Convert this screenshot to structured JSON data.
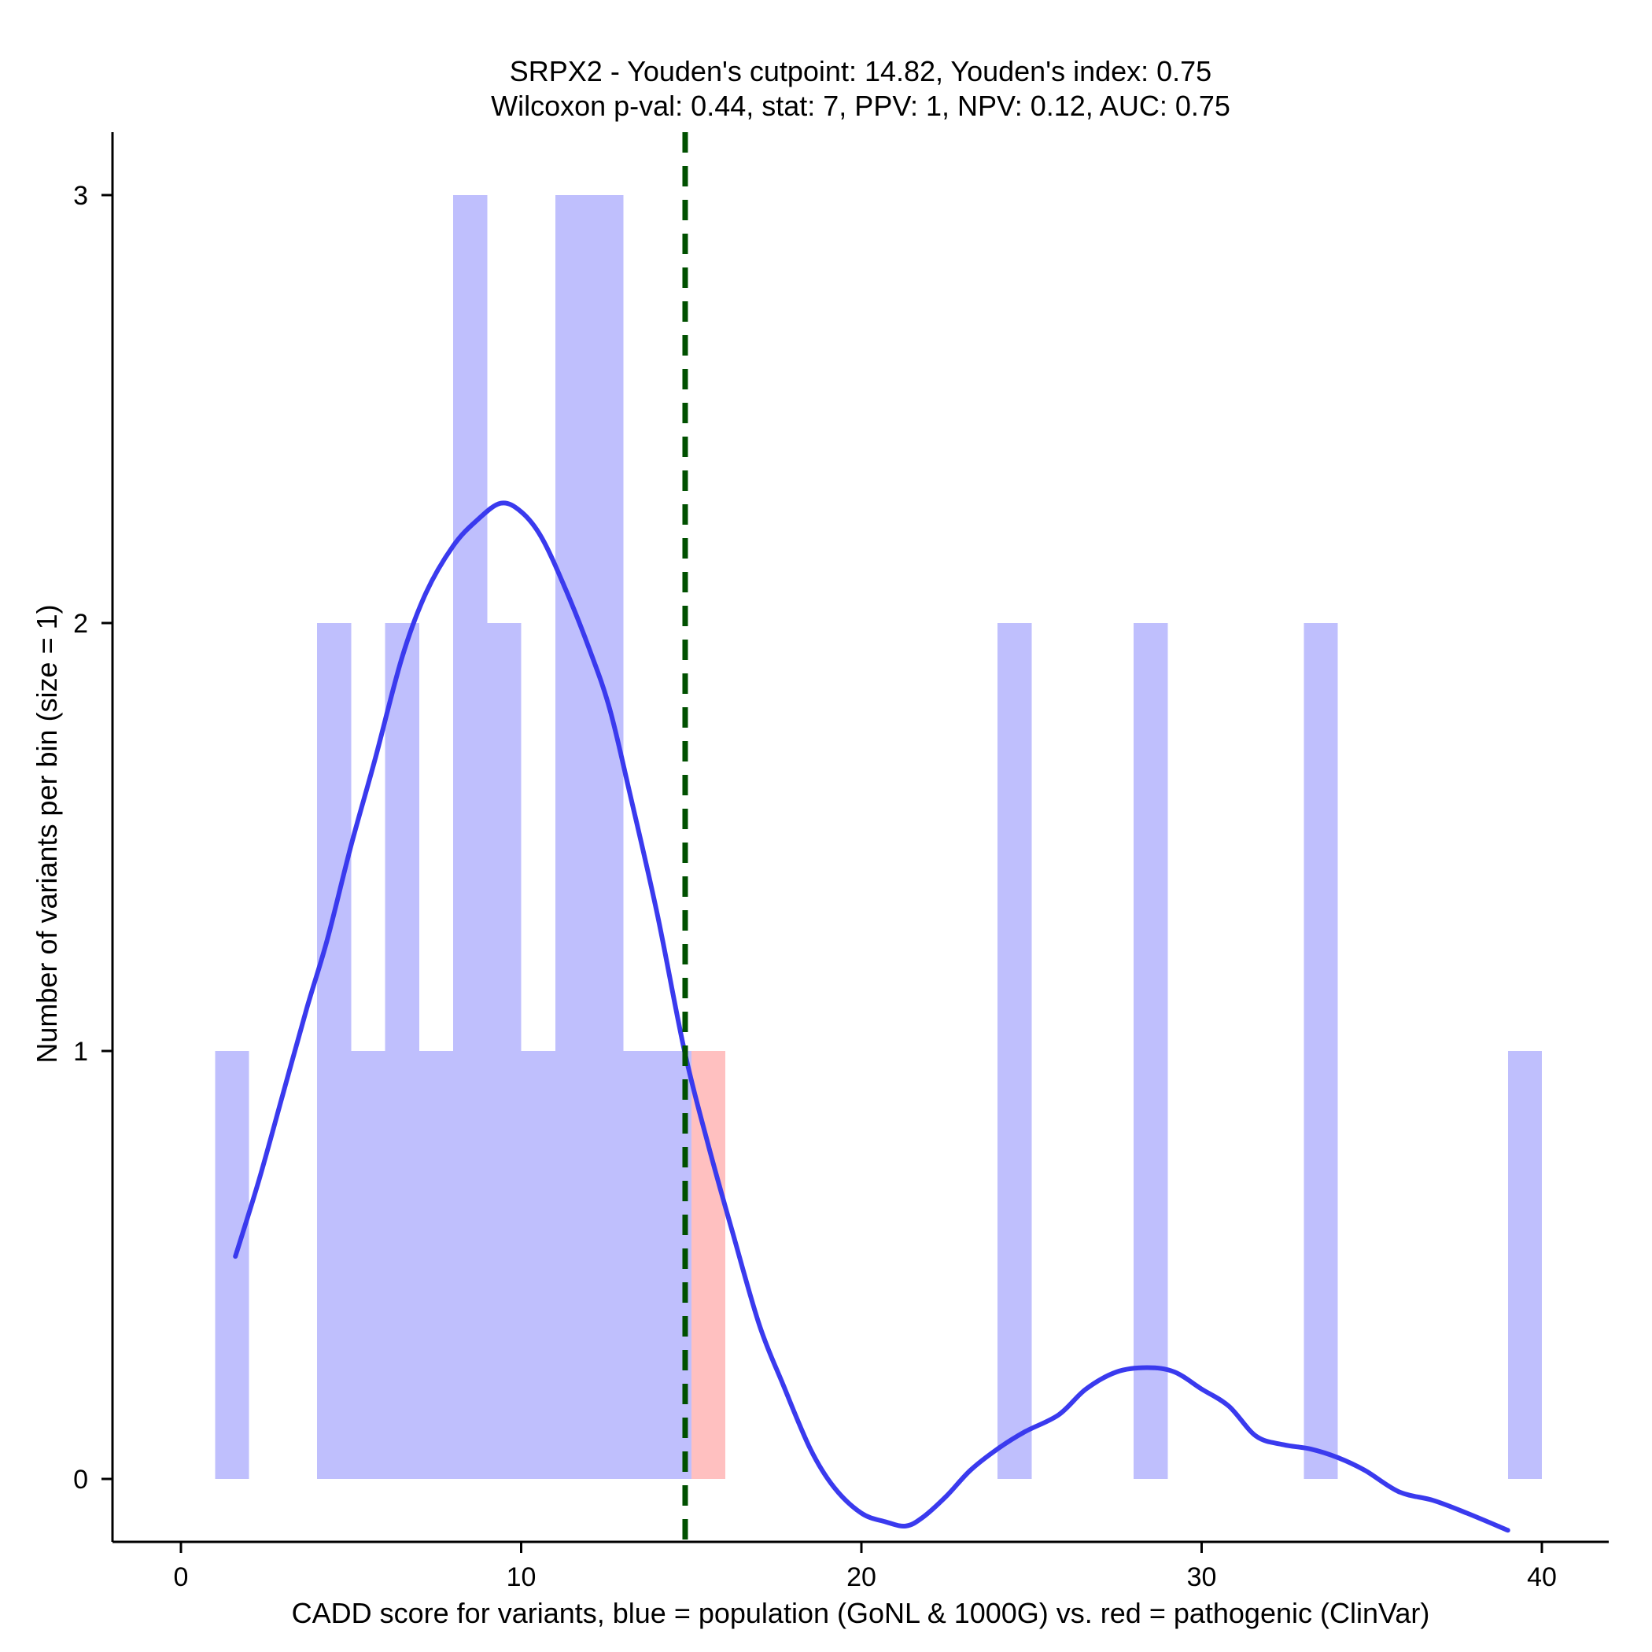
{
  "chart_data": {
    "type": "bar",
    "title_line1": "SRPX2 - Youden's cutpoint: 14.82, Youden's index: 0.75",
    "title_line2": "Wilcoxon p-val: 0.44, stat: 7, PPV: 1, NPV: 0.12, AUC: 0.75",
    "xlabel": "CADD score for variants, blue = population (GoNL & 1000G) vs. red = pathogenic (ClinVar)",
    "ylabel": "Number of variants per bin (size = 1)",
    "xlim": [
      -2,
      42
    ],
    "ylim": [
      -0.15,
      3.15
    ],
    "xticks": [
      0,
      10,
      20,
      30,
      40
    ],
    "yticks": [
      0,
      1,
      2,
      3
    ],
    "bin_size": 1,
    "series": [
      {
        "name": "population (GoNL & 1000G)",
        "color": "#bfbffd",
        "bins": [
          {
            "start": 1,
            "count": 1
          },
          {
            "start": 4,
            "count": 2
          },
          {
            "start": 5,
            "count": 1
          },
          {
            "start": 6,
            "count": 2
          },
          {
            "start": 7,
            "count": 1
          },
          {
            "start": 8,
            "count": 3
          },
          {
            "start": 9,
            "count": 2
          },
          {
            "start": 10,
            "count": 1
          },
          {
            "start": 11,
            "count": 3
          },
          {
            "start": 12,
            "count": 3
          },
          {
            "start": 13,
            "count": 1
          },
          {
            "start": 14,
            "count": 1
          },
          {
            "start": 24,
            "count": 2
          },
          {
            "start": 28,
            "count": 2
          },
          {
            "start": 33,
            "count": 2
          },
          {
            "start": 39,
            "count": 1
          }
        ]
      },
      {
        "name": "pathogenic (ClinVar)",
        "color": "#ffc0c0",
        "bins": [
          {
            "start": 15,
            "count": 1
          }
        ]
      }
    ],
    "density_curve": {
      "name": "population density",
      "color": "#3a3aee",
      "points": [
        [
          1.6,
          0.52
        ],
        [
          2.3,
          0.7
        ],
        [
          3.0,
          0.9
        ],
        [
          3.7,
          1.1
        ],
        [
          4.3,
          1.26
        ],
        [
          5.0,
          1.48
        ],
        [
          5.7,
          1.68
        ],
        [
          6.5,
          1.92
        ],
        [
          7.2,
          2.07
        ],
        [
          8.0,
          2.18
        ],
        [
          8.7,
          2.24
        ],
        [
          9.4,
          2.28
        ],
        [
          10.0,
          2.26
        ],
        [
          10.6,
          2.2
        ],
        [
          11.3,
          2.08
        ],
        [
          12.0,
          1.94
        ],
        [
          12.6,
          1.8
        ],
        [
          13.2,
          1.6
        ],
        [
          14.0,
          1.32
        ],
        [
          14.8,
          1.0
        ],
        [
          15.5,
          0.78
        ],
        [
          16.2,
          0.58
        ],
        [
          17.0,
          0.36
        ],
        [
          17.7,
          0.22
        ],
        [
          18.5,
          0.07
        ],
        [
          19.2,
          -0.02
        ],
        [
          20.0,
          -0.08
        ],
        [
          20.7,
          -0.1
        ],
        [
          21.3,
          -0.11
        ],
        [
          21.8,
          -0.09
        ],
        [
          22.5,
          -0.04
        ],
        [
          23.2,
          0.02
        ],
        [
          24.0,
          0.07
        ],
        [
          24.8,
          0.11
        ],
        [
          25.8,
          0.15
        ],
        [
          26.6,
          0.21
        ],
        [
          27.5,
          0.25
        ],
        [
          28.4,
          0.26
        ],
        [
          29.2,
          0.25
        ],
        [
          30.0,
          0.21
        ],
        [
          30.8,
          0.17
        ],
        [
          31.6,
          0.1
        ],
        [
          32.4,
          0.08
        ],
        [
          33.2,
          0.07
        ],
        [
          34.0,
          0.05
        ],
        [
          34.8,
          0.02
        ],
        [
          35.8,
          -0.03
        ],
        [
          36.8,
          -0.05
        ],
        [
          37.8,
          -0.08
        ],
        [
          39.0,
          -0.12
        ]
      ]
    },
    "cutpoint": {
      "x": 14.82,
      "color": "#005000",
      "style": "dashed"
    }
  }
}
